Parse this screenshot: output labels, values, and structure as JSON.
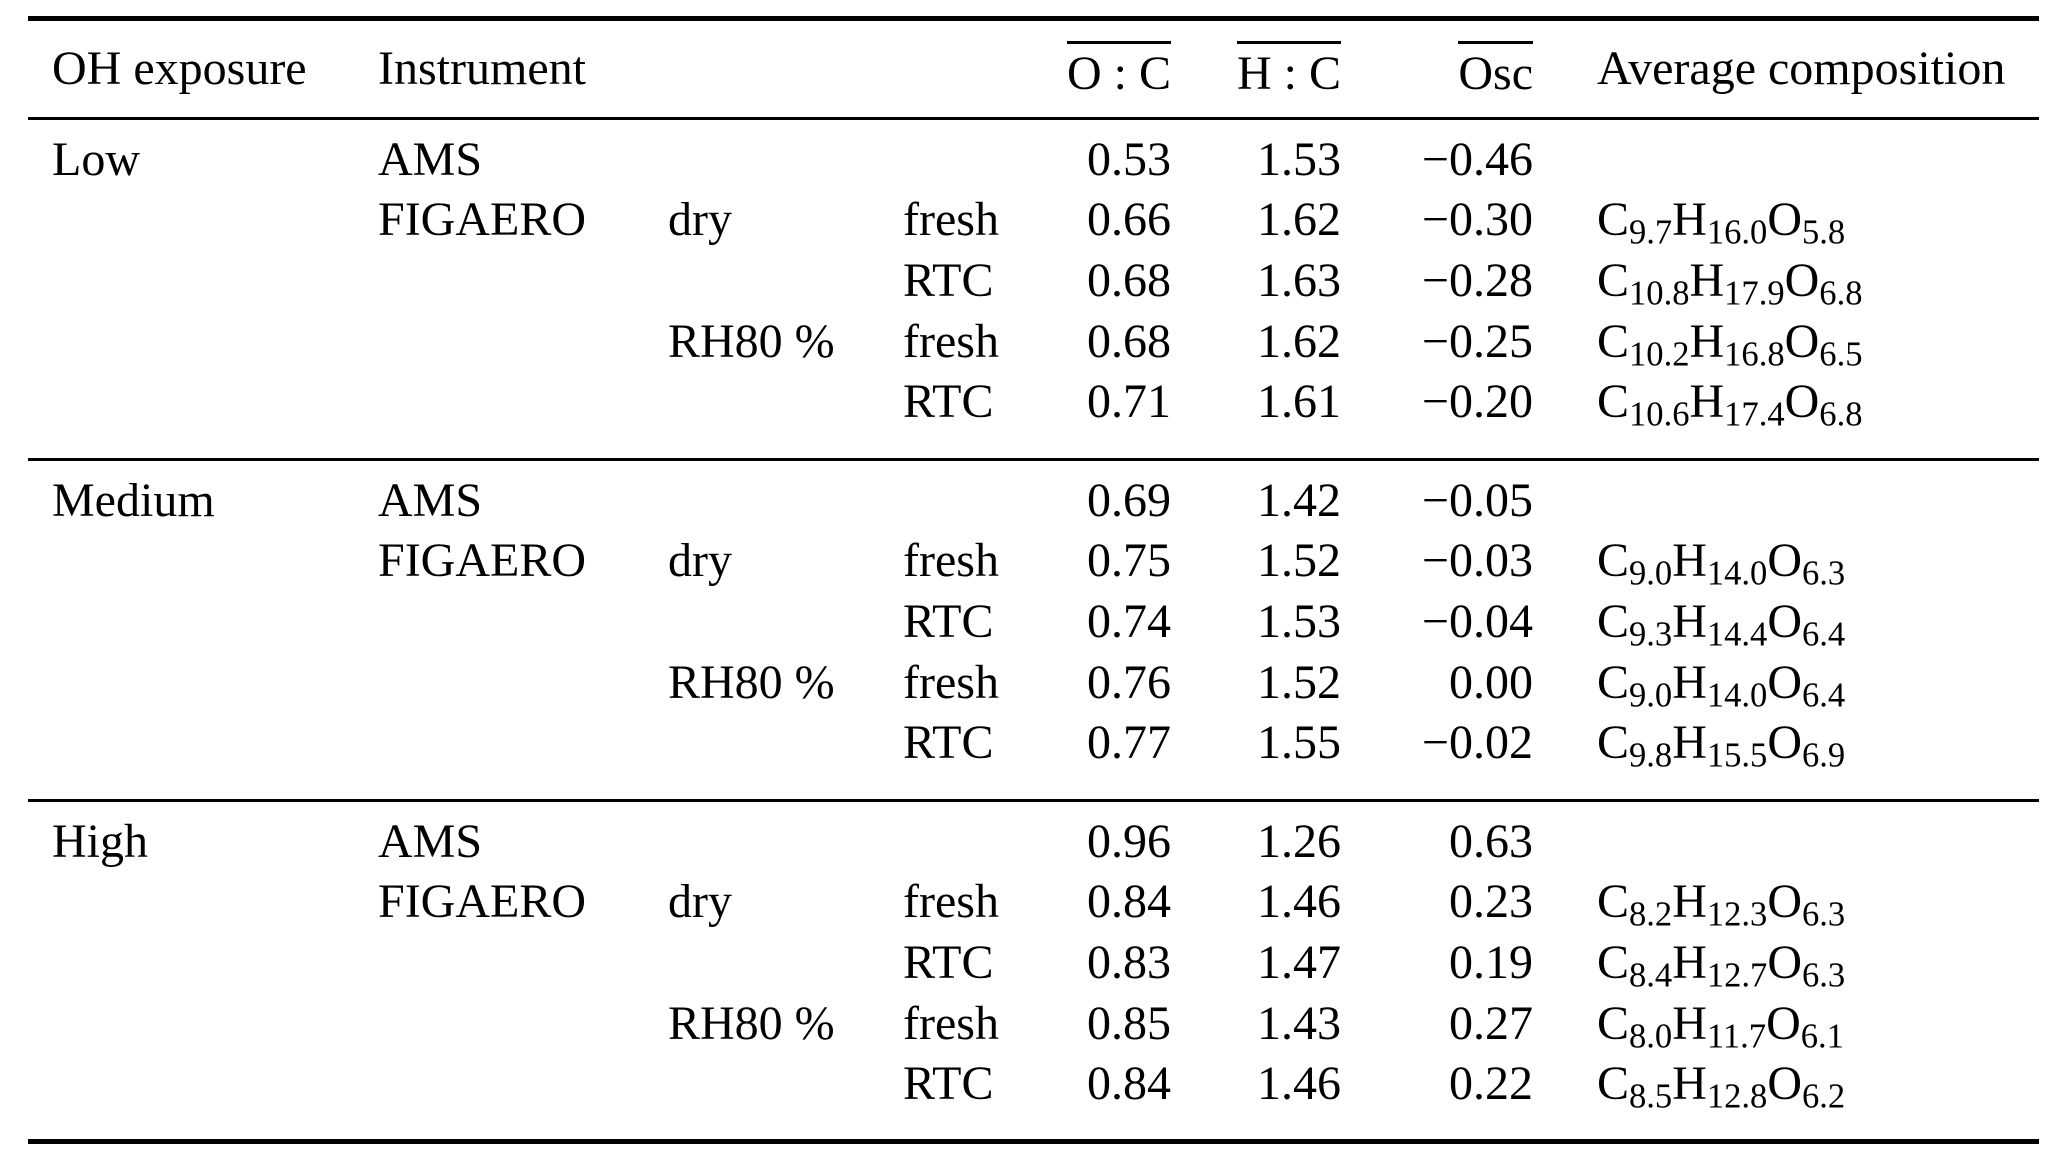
{
  "colors": {
    "text": "#000000",
    "background": "#ffffff",
    "rule": "#000000"
  },
  "header": {
    "col_exposure": "OH exposure",
    "col_instrument": "Instrument",
    "col_humidity": "",
    "col_state": "",
    "col_oc": "O : C",
    "col_hc": "H : C",
    "col_osc": "Osc",
    "col_composition": "Average composition"
  },
  "sections": [
    {
      "exposure": "Low",
      "rows": [
        {
          "instrument": "AMS",
          "humidity": "",
          "state": "",
          "oc": "0.53",
          "hc": "1.53",
          "osc": "−0.46",
          "composition": []
        },
        {
          "instrument": "FIGAERO",
          "humidity": "dry",
          "state": "fresh",
          "oc": "0.66",
          "hc": "1.62",
          "osc": "−0.30",
          "composition": [
            [
              "C",
              "9.7"
            ],
            [
              "H",
              "16.0"
            ],
            [
              "O",
              "5.8"
            ]
          ]
        },
        {
          "instrument": "",
          "humidity": "",
          "state": "RTC",
          "oc": "0.68",
          "hc": "1.63",
          "osc": "−0.28",
          "composition": [
            [
              "C",
              "10.8"
            ],
            [
              "H",
              "17.9"
            ],
            [
              "O",
              "6.8"
            ]
          ]
        },
        {
          "instrument": "",
          "humidity": "RH80 %",
          "state": "fresh",
          "oc": "0.68",
          "hc": "1.62",
          "osc": "−0.25",
          "composition": [
            [
              "C",
              "10.2"
            ],
            [
              "H",
              "16.8"
            ],
            [
              "O",
              "6.5"
            ]
          ]
        },
        {
          "instrument": "",
          "humidity": "",
          "state": "RTC",
          "oc": "0.71",
          "hc": "1.61",
          "osc": "−0.20",
          "composition": [
            [
              "C",
              "10.6"
            ],
            [
              "H",
              "17.4"
            ],
            [
              "O",
              "6.8"
            ]
          ]
        }
      ]
    },
    {
      "exposure": "Medium",
      "rows": [
        {
          "instrument": "AMS",
          "humidity": "",
          "state": "",
          "oc": "0.69",
          "hc": "1.42",
          "osc": "−0.05",
          "composition": []
        },
        {
          "instrument": "FIGAERO",
          "humidity": "dry",
          "state": "fresh",
          "oc": "0.75",
          "hc": "1.52",
          "osc": "−0.03",
          "composition": [
            [
              "C",
              "9.0"
            ],
            [
              "H",
              "14.0"
            ],
            [
              "O",
              "6.3"
            ]
          ]
        },
        {
          "instrument": "",
          "humidity": "",
          "state": "RTC",
          "oc": "0.74",
          "hc": "1.53",
          "osc": "−0.04",
          "composition": [
            [
              "C",
              "9.3"
            ],
            [
              "H",
              "14.4"
            ],
            [
              "O",
              "6.4"
            ]
          ]
        },
        {
          "instrument": "",
          "humidity": "RH80 %",
          "state": "fresh",
          "oc": "0.76",
          "hc": "1.52",
          "osc": "0.00",
          "composition": [
            [
              "C",
              "9.0"
            ],
            [
              "H",
              "14.0"
            ],
            [
              "O",
              "6.4"
            ]
          ]
        },
        {
          "instrument": "",
          "humidity": "",
          "state": "RTC",
          "oc": "0.77",
          "hc": "1.55",
          "osc": "−0.02",
          "composition": [
            [
              "C",
              "9.8"
            ],
            [
              "H",
              "15.5"
            ],
            [
              "O",
              "6.9"
            ]
          ]
        }
      ]
    },
    {
      "exposure": "High",
      "rows": [
        {
          "instrument": "AMS",
          "humidity": "",
          "state": "",
          "oc": "0.96",
          "hc": "1.26",
          "osc": "0.63",
          "composition": []
        },
        {
          "instrument": "FIGAERO",
          "humidity": "dry",
          "state": "fresh",
          "oc": "0.84",
          "hc": "1.46",
          "osc": "0.23",
          "composition": [
            [
              "C",
              "8.2"
            ],
            [
              "H",
              "12.3"
            ],
            [
              "O",
              "6.3"
            ]
          ]
        },
        {
          "instrument": "",
          "humidity": "",
          "state": "RTC",
          "oc": "0.83",
          "hc": "1.47",
          "osc": "0.19",
          "composition": [
            [
              "C",
              "8.4"
            ],
            [
              "H",
              "12.7"
            ],
            [
              "O",
              "6.3"
            ]
          ]
        },
        {
          "instrument": "",
          "humidity": "RH80 %",
          "state": "fresh",
          "oc": "0.85",
          "hc": "1.43",
          "osc": "0.27",
          "composition": [
            [
              "C",
              "8.0"
            ],
            [
              "H",
              "11.7"
            ],
            [
              "O",
              "6.1"
            ]
          ]
        },
        {
          "instrument": "",
          "humidity": "",
          "state": "RTC",
          "oc": "0.84",
          "hc": "1.46",
          "osc": "0.22",
          "composition": [
            [
              "C",
              "8.5"
            ],
            [
              "H",
              "12.8"
            ],
            [
              "O",
              "6.2"
            ]
          ]
        }
      ]
    }
  ]
}
